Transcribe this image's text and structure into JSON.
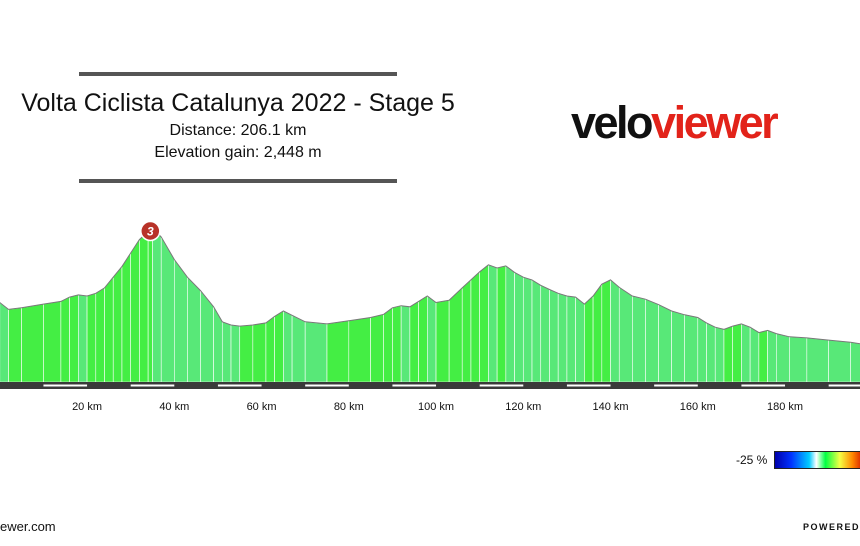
{
  "header": {
    "title": "Volta Ciclista Catalunya 2022 - Stage 5",
    "distance": "Distance: 206.1 km",
    "elevation_gain": "Elevation gain: 2,448 m"
  },
  "logo": {
    "part1": "velo",
    "part2": "viewer",
    "colors": {
      "part1": "#111111",
      "part2": "#e2231a"
    }
  },
  "legend": {
    "min_label": "-25 %"
  },
  "footer": {
    "left": "ewer.com",
    "right": "POWERED B"
  },
  "chart_data": {
    "type": "area",
    "x_unit": "km",
    "xlim": [
      -5,
      202
    ],
    "x_ticks": [
      20,
      40,
      60,
      80,
      100,
      120,
      140,
      160,
      180
    ],
    "tick_labels": [
      "20 km",
      "40 km",
      "60 km",
      "80 km",
      "100 km",
      "120 km",
      "140 km",
      "160 km",
      "180 km"
    ],
    "ylim": [
      0,
      320
    ],
    "climb_marker": {
      "label": "3",
      "km": 34.5,
      "color": "#b83228"
    },
    "profile": [
      {
        "km": -5,
        "ele": 145
      },
      {
        "km": -2,
        "ele": 155
      },
      {
        "km": 0,
        "ele": 148
      },
      {
        "km": 2,
        "ele": 135
      },
      {
        "km": 5,
        "ele": 138
      },
      {
        "km": 10,
        "ele": 145
      },
      {
        "km": 14,
        "ele": 150
      },
      {
        "km": 16,
        "ele": 158
      },
      {
        "km": 18,
        "ele": 162
      },
      {
        "km": 20,
        "ele": 160
      },
      {
        "km": 22,
        "ele": 165
      },
      {
        "km": 24,
        "ele": 175
      },
      {
        "km": 26,
        "ele": 195
      },
      {
        "km": 28,
        "ele": 215
      },
      {
        "km": 30,
        "ele": 240
      },
      {
        "km": 32,
        "ele": 265
      },
      {
        "km": 34,
        "ele": 280
      },
      {
        "km": 35,
        "ele": 286
      },
      {
        "km": 37,
        "ele": 270
      },
      {
        "km": 40,
        "ele": 228
      },
      {
        "km": 43,
        "ele": 195
      },
      {
        "km": 46,
        "ele": 170
      },
      {
        "km": 49,
        "ele": 140
      },
      {
        "km": 51,
        "ele": 112
      },
      {
        "km": 53,
        "ele": 106
      },
      {
        "km": 55,
        "ele": 104
      },
      {
        "km": 58,
        "ele": 106
      },
      {
        "km": 61,
        "ele": 110
      },
      {
        "km": 63,
        "ele": 122
      },
      {
        "km": 65,
        "ele": 132
      },
      {
        "km": 67,
        "ele": 124
      },
      {
        "km": 70,
        "ele": 112
      },
      {
        "km": 75,
        "ele": 108
      },
      {
        "km": 80,
        "ele": 114
      },
      {
        "km": 85,
        "ele": 120
      },
      {
        "km": 88,
        "ele": 126
      },
      {
        "km": 90,
        "ele": 138
      },
      {
        "km": 92,
        "ele": 142
      },
      {
        "km": 94,
        "ele": 140
      },
      {
        "km": 96,
        "ele": 150
      },
      {
        "km": 98,
        "ele": 160
      },
      {
        "km": 100,
        "ele": 148
      },
      {
        "km": 103,
        "ele": 152
      },
      {
        "km": 106,
        "ele": 175
      },
      {
        "km": 108,
        "ele": 190
      },
      {
        "km": 110,
        "ele": 205
      },
      {
        "km": 112,
        "ele": 218
      },
      {
        "km": 114,
        "ele": 212
      },
      {
        "km": 116,
        "ele": 216
      },
      {
        "km": 118,
        "ele": 204
      },
      {
        "km": 120,
        "ele": 195
      },
      {
        "km": 122,
        "ele": 190
      },
      {
        "km": 124,
        "ele": 180
      },
      {
        "km": 126,
        "ele": 172
      },
      {
        "km": 128,
        "ele": 165
      },
      {
        "km": 130,
        "ele": 160
      },
      {
        "km": 132,
        "ele": 158
      },
      {
        "km": 134,
        "ele": 145
      },
      {
        "km": 136,
        "ele": 160
      },
      {
        "km": 138,
        "ele": 182
      },
      {
        "km": 140,
        "ele": 190
      },
      {
        "km": 142,
        "ele": 176
      },
      {
        "km": 145,
        "ele": 160
      },
      {
        "km": 148,
        "ele": 154
      },
      {
        "km": 151,
        "ele": 144
      },
      {
        "km": 154,
        "ele": 132
      },
      {
        "km": 157,
        "ele": 125
      },
      {
        "km": 160,
        "ele": 120
      },
      {
        "km": 162,
        "ele": 110
      },
      {
        "km": 164,
        "ele": 102
      },
      {
        "km": 166,
        "ele": 98
      },
      {
        "km": 168,
        "ele": 104
      },
      {
        "km": 170,
        "ele": 108
      },
      {
        "km": 172,
        "ele": 102
      },
      {
        "km": 174,
        "ele": 92
      },
      {
        "km": 176,
        "ele": 96
      },
      {
        "km": 178,
        "ele": 90
      },
      {
        "km": 181,
        "ele": 84
      },
      {
        "km": 185,
        "ele": 82
      },
      {
        "km": 190,
        "ele": 78
      },
      {
        "km": 195,
        "ele": 74
      },
      {
        "km": 198,
        "ele": 70
      },
      {
        "km": 202,
        "ele": 72
      }
    ]
  }
}
